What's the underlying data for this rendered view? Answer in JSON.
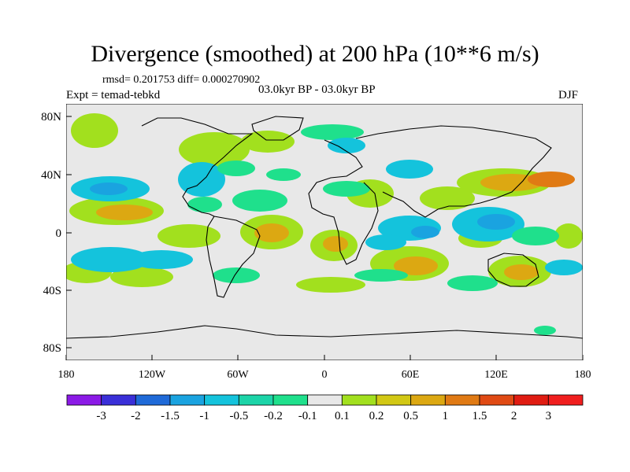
{
  "title": "Divergence (smoothed) at 200 hPa (10**6 m/s)",
  "stats": "rmsd= 0.201753 diff= 0.000270902",
  "expt": "Expt = temad-tebkd",
  "period": "03.0kyr BP - 03.0kyr BP",
  "season": "DJF",
  "axes": {
    "lat_labels": [
      "80N",
      "40N",
      "0",
      "40S",
      "80S"
    ],
    "lon_labels": [
      "180",
      "120W",
      "60W",
      "0",
      "60E",
      "120E",
      "180"
    ]
  },
  "colorbar": {
    "labels": [
      "-3",
      "-2",
      "-1.5",
      "-1",
      "-0.5",
      "-0.2",
      "-0.1",
      "0.1",
      "0.2",
      "0.5",
      "1",
      "1.5",
      "2",
      "3"
    ],
    "colors": [
      "#8b1ae6",
      "#3a2fd8",
      "#1f6ad8",
      "#1aa3e0",
      "#14c3dc",
      "#1cd4a8",
      "#1fe08c",
      "#e8e8e8",
      "#a2e01e",
      "#d2c814",
      "#dca812",
      "#e07a14",
      "#e04a14",
      "#e01c12",
      "#f01e1e"
    ]
  },
  "colors": {
    "background_field": "#e8e8e8",
    "frame": "#000000"
  }
}
